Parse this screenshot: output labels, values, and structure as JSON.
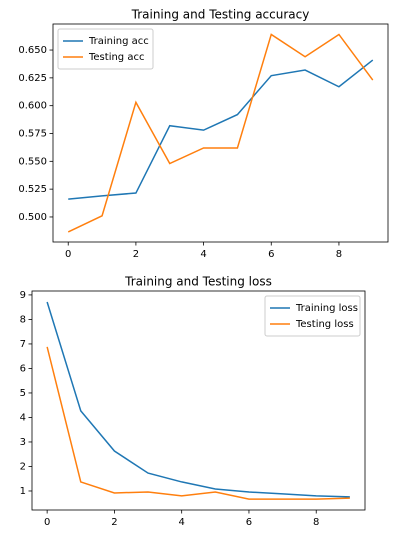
{
  "chart_data": [
    {
      "type": "line",
      "title": "Training and Testing accuracy",
      "x": [
        0,
        1,
        2,
        3,
        4,
        5,
        6,
        7,
        8,
        9
      ],
      "series": [
        {
          "name": "Training acc",
          "color": "#1f77b4",
          "values": [
            0.516,
            0.519,
            0.5215,
            0.582,
            0.578,
            0.592,
            0.627,
            0.632,
            0.617,
            0.641
          ]
        },
        {
          "name": "Testing acc",
          "color": "#ff7f0e",
          "values": [
            0.4865,
            0.501,
            0.603,
            0.548,
            0.562,
            0.562,
            0.664,
            0.644,
            0.664,
            0.623
          ]
        }
      ],
      "xlim": [
        -0.45,
        9.45
      ],
      "xticks": [
        0,
        2,
        4,
        6,
        8
      ],
      "ylim": [
        0.4775,
        0.6734
      ],
      "yticks": [
        {
          "value": 0.5,
          "label": "0.500"
        },
        {
          "value": 0.525,
          "label": "0.525"
        },
        {
          "value": 0.55,
          "label": "0.550"
        },
        {
          "value": 0.575,
          "label": "0.575"
        },
        {
          "value": 0.6,
          "label": "0.600"
        },
        {
          "value": 0.625,
          "label": "0.625"
        },
        {
          "value": 0.65,
          "label": "0.650"
        }
      ],
      "grid": false,
      "legend": "upper-left"
    },
    {
      "type": "line",
      "title": "Training and Testing loss",
      "x": [
        0,
        1,
        2,
        3,
        4,
        5,
        6,
        7,
        8,
        9
      ],
      "series": [
        {
          "name": "Training loss",
          "color": "#1f77b4",
          "values": [
            8.71,
            4.27,
            2.63,
            1.73,
            1.37,
            1.08,
            0.96,
            0.88,
            0.8,
            0.76
          ]
        },
        {
          "name": "Testing loss",
          "color": "#ff7f0e",
          "values": [
            6.88,
            1.37,
            0.92,
            0.96,
            0.8,
            0.96,
            0.67,
            0.67,
            0.67,
            0.71
          ]
        }
      ],
      "xlim": [
        -0.45,
        9.45
      ],
      "xticks": [
        0,
        2,
        4,
        6,
        8
      ],
      "ylim": [
        0.224,
        9.16
      ],
      "yticks": [
        1,
        2,
        3,
        4,
        5,
        6,
        7,
        8,
        9
      ],
      "grid": false,
      "legend": "upper-right"
    }
  ]
}
